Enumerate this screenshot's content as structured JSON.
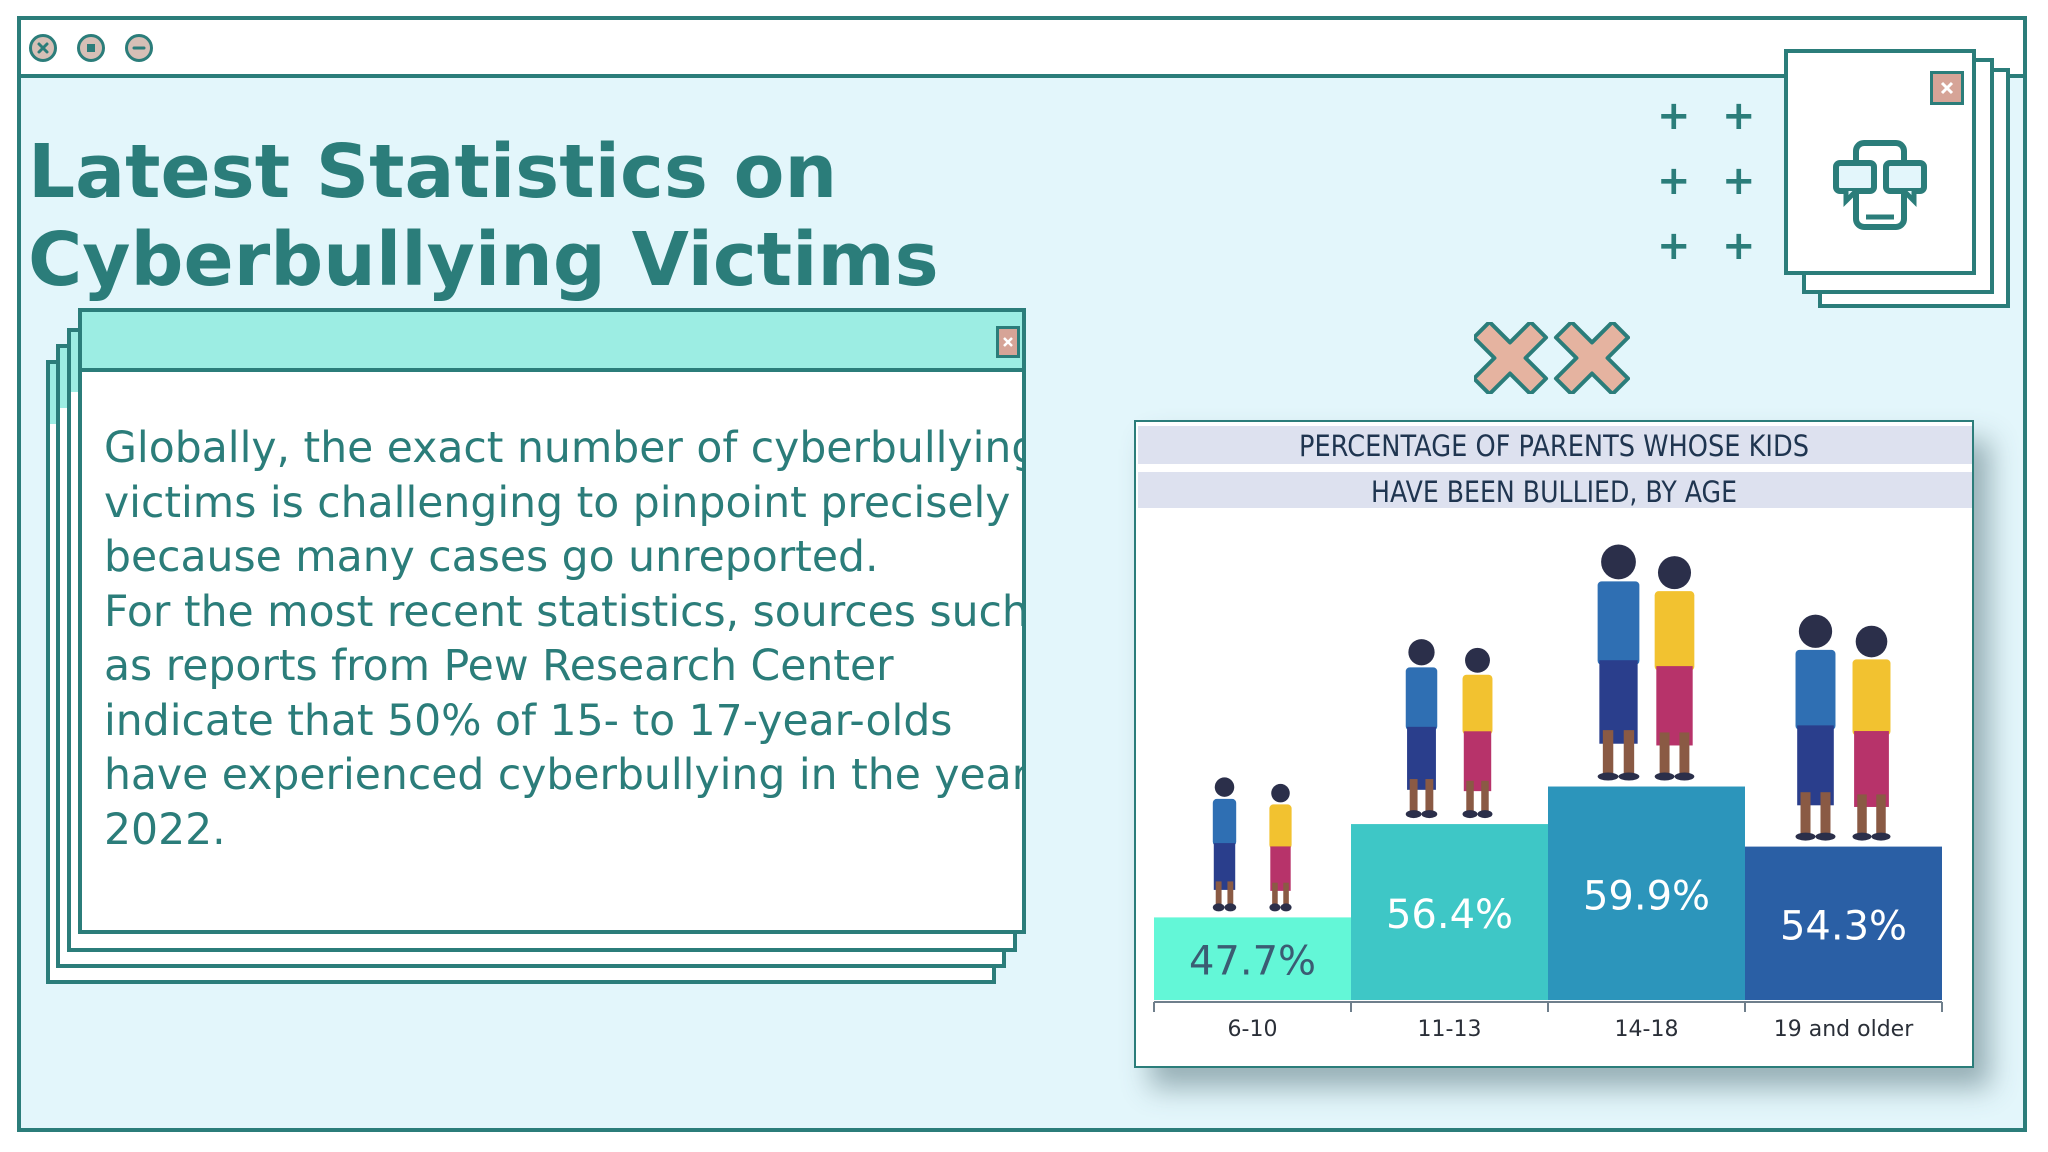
{
  "slide": {
    "title": "Latest Statistics on Cyberbullying Victims",
    "body_lines": [
      "Globally, the exact number of cyberbullying",
      "victims is challenging to pinpoint precisely",
      "because many cases go unreported.",
      "For the most recent statistics, sources such",
      "as reports from Pew Research Center",
      "indicate that 50% of 15- to 17-year-olds",
      "have experienced cyberbullying in the year",
      "2022."
    ]
  },
  "icons": {
    "window_controls": [
      "close-icon",
      "stop-icon",
      "minimize-icon"
    ],
    "decor_window": "chat-bubbles-icon",
    "decor_marks": [
      "cross-mark-icon",
      "cross-mark-icon"
    ]
  },
  "colors": {
    "accent": "#2b7d7a",
    "background": "#e3f6fb",
    "card_bar": "#9cede3",
    "close_box": "#d6a497"
  },
  "chart_data": {
    "type": "bar",
    "title_lines": [
      "PERCENTAGE OF PARENTS WHOSE KIDS",
      "HAVE BEEN BULLIED, BY AGE"
    ],
    "categories": [
      "6-10",
      "11-13",
      "14-18",
      "19 and older"
    ],
    "values": [
      47.7,
      56.4,
      59.9,
      54.3
    ],
    "value_labels": [
      "47.7%",
      "56.4%",
      "59.9%",
      "54.3%"
    ],
    "unit": "%",
    "bar_colors": [
      "#63f7d7",
      "#3ec7c6",
      "#2c95bb",
      "#2a5fa5"
    ],
    "label_colors": [
      "#3b5c73",
      "#ffffff",
      "#ffffff",
      "#ffffff"
    ],
    "ylim": [
      0,
      100
    ],
    "grid": false,
    "legend": "none"
  }
}
